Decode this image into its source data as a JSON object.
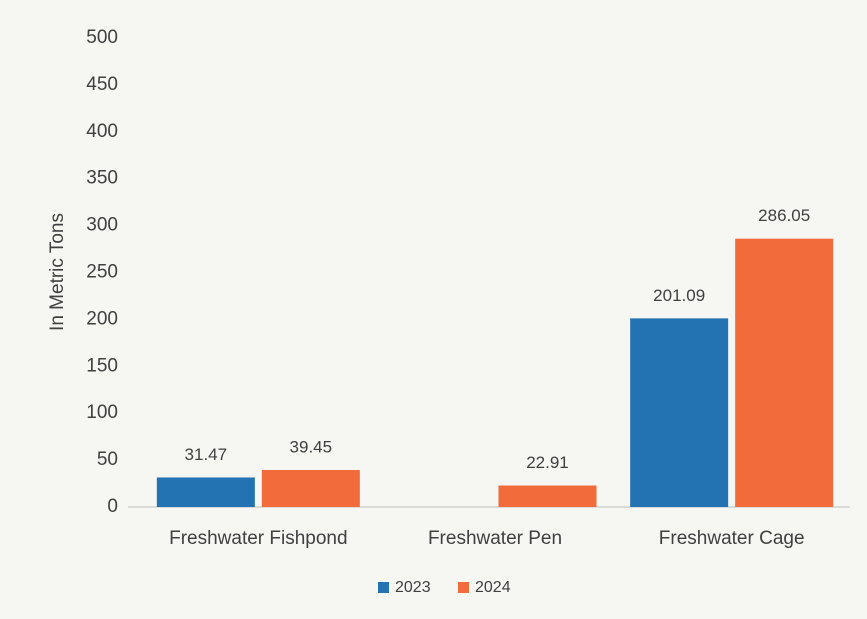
{
  "chart_data": {
    "type": "bar",
    "y_label": "In Metric Tons",
    "categories": [
      "Freshwater Fishpond",
      "Freshwater Pen",
      "Freshwater Cage"
    ],
    "series": [
      {
        "name": "2023",
        "color": "#2372b2",
        "values": [
          31.47,
          null,
          201.09
        ]
      },
      {
        "name": "2024",
        "color": "#f26b3a",
        "values": [
          39.45,
          22.91,
          286.05
        ]
      }
    ],
    "ylim": [
      0,
      500
    ],
    "yticks": [
      0,
      50,
      100,
      150,
      200,
      250,
      300,
      350,
      400,
      450,
      500
    ],
    "grid": false,
    "legend": "bottom"
  }
}
